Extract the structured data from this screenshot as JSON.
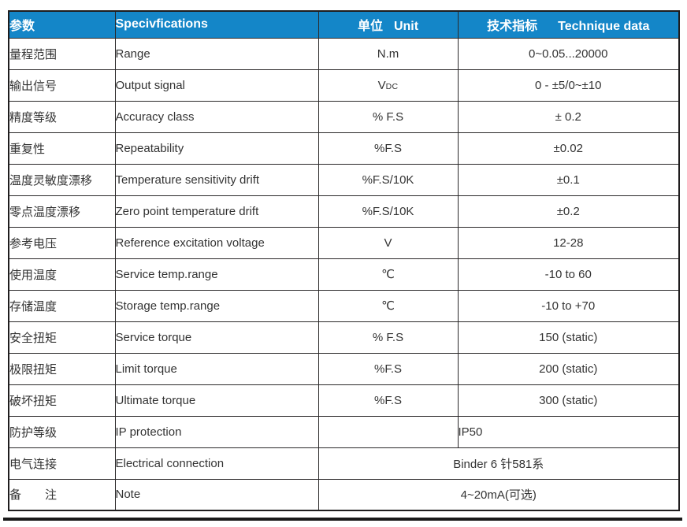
{
  "table": {
    "header": {
      "param_cn": "参数",
      "spec_en": "Specivfications",
      "unit_cn": "单位",
      "unit_en": "Unit",
      "tech_cn": "技术指标",
      "tech_en": "Technique data"
    },
    "rows": [
      {
        "cn": "量程范围",
        "en": "Range",
        "unit": "N.m",
        "value": "0~0.05...20000"
      },
      {
        "cn": "输出信号",
        "en": "Output signal",
        "unit": "V",
        "unit_sub": "DC",
        "value": "0 - ±5/0~±10"
      },
      {
        "cn": "精度等级",
        "en": "Accuracy class",
        "unit": "% F.S",
        "value": "± 0.2"
      },
      {
        "cn": "重复性",
        "en": "Repeatability",
        "unit": "%F.S",
        "value": "±0.02"
      },
      {
        "cn": "温度灵敏度漂移",
        "en": "Temperature sensitivity drift",
        "unit": "%F.S/10K",
        "value": "±0.1"
      },
      {
        "cn": "零点温度漂移",
        "en": "Zero point temperature drift",
        "unit": "%F.S/10K",
        "value": "±0.2"
      },
      {
        "cn": "参考电压",
        "en": "Reference excitation voltage",
        "unit": "V",
        "value": "12-28"
      },
      {
        "cn": "使用温度",
        "en": "Service temp.range",
        "unit": "℃",
        "value": "-10 to 60"
      },
      {
        "cn": "存储温度",
        "en": "Storage temp.range",
        "unit": "℃",
        "value": "-10 to +70"
      },
      {
        "cn": "安全扭矩",
        "en": "Service torque",
        "unit": "% F.S",
        "value": "150 (static)"
      },
      {
        "cn": "极限扭矩",
        "en": "Limit torque",
        "unit": "%F.S",
        "value": "200 (static)"
      },
      {
        "cn": "破坏扭矩",
        "en": "Ultimate torque",
        "unit": "%F.S",
        "value": "300 (static)"
      },
      {
        "cn": "防护等级",
        "en": "IP protection",
        "unit": "",
        "value": "IP50"
      },
      {
        "cn": "电气连接",
        "en": "Electrical connection",
        "merged_value": "Binder 6 针581系"
      },
      {
        "cn": "备　　注",
        "en": "Note",
        "merged_value": "4~20mA(可选)"
      }
    ],
    "colors": {
      "header_bg": "#1486c8",
      "header_text": "#ffffff",
      "border": "#2b292a",
      "body_text": "#333333"
    }
  }
}
